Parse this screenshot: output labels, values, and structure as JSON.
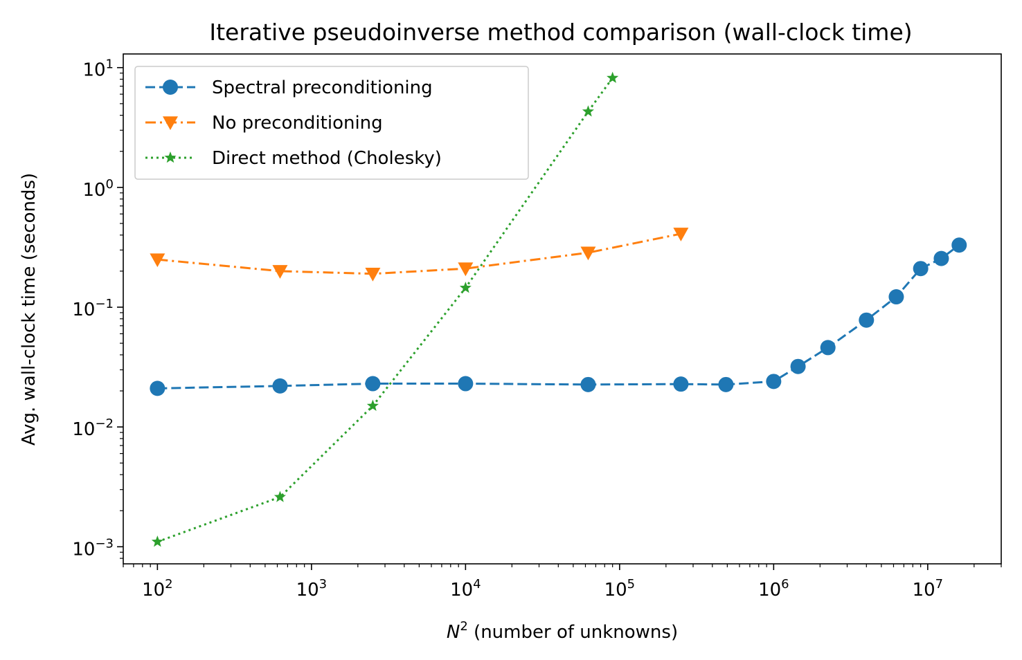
{
  "chart_data": {
    "type": "line",
    "title": "Iterative pseudoinverse method comparison (wall-clock time)",
    "xlabel_main": "N",
    "xlabel_sup": "2",
    "xlabel_rest": " (number of unknowns)",
    "ylabel": "Avg. wall-clock time (seconds)",
    "xscale": "log",
    "yscale": "log",
    "xlim": [
      60,
      30000000
    ],
    "ylim": [
      0.00072,
      13
    ],
    "x_ticks": [
      {
        "value": 100,
        "exp": "2"
      },
      {
        "value": 1000,
        "exp": "3"
      },
      {
        "value": 10000,
        "exp": "4"
      },
      {
        "value": 100000,
        "exp": "5"
      },
      {
        "value": 1000000,
        "exp": "6"
      },
      {
        "value": 10000000,
        "exp": "7"
      }
    ],
    "y_ticks": [
      {
        "value": 0.001,
        "exp": "−3"
      },
      {
        "value": 0.01,
        "exp": "−2"
      },
      {
        "value": 0.1,
        "exp": "−1"
      },
      {
        "value": 1,
        "exp": "0"
      },
      {
        "value": 10,
        "exp": "1"
      }
    ],
    "tick_base": "10",
    "grid": false,
    "legend_position": "top-left",
    "series": [
      {
        "name": "Spectral preconditioning",
        "color": "#1f77b4",
        "marker": "circle",
        "linestyle": "dashed",
        "x": [
          100,
          625,
          2500,
          10000,
          62500,
          250000,
          490000,
          1000000,
          1440000,
          2250000,
          4000000,
          6250000,
          9000000,
          12250000,
          16000000
        ],
        "y": [
          0.021,
          0.022,
          0.023,
          0.023,
          0.0226,
          0.0228,
          0.0226,
          0.024,
          0.032,
          0.046,
          0.078,
          0.122,
          0.21,
          0.255,
          0.33
        ]
      },
      {
        "name": "No preconditioning",
        "color": "#ff7f0e",
        "marker": "triangle-down",
        "linestyle": "dashdot",
        "x": [
          100,
          625,
          2500,
          10000,
          62500,
          250000
        ],
        "y": [
          0.25,
          0.2,
          0.19,
          0.21,
          0.285,
          0.41
        ]
      },
      {
        "name": "Direct method (Cholesky)",
        "color": "#2ca02c",
        "marker": "star",
        "linestyle": "dotted",
        "x": [
          100,
          625,
          2500,
          10000,
          62500,
          90000
        ],
        "y": [
          0.0011,
          0.0026,
          0.015,
          0.145,
          4.3,
          8.2
        ]
      }
    ]
  }
}
